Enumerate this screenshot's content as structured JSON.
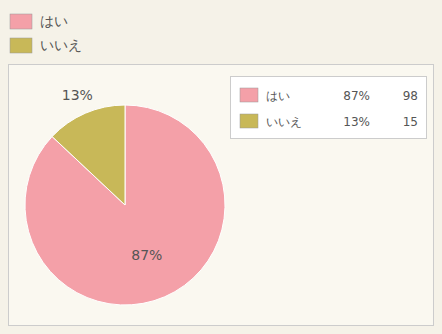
{
  "chart_data": {
    "type": "pie",
    "categories": [
      "はい",
      "いいえ"
    ],
    "values": [
      87,
      13
    ],
    "value_labels": [
      "87%",
      "13%"
    ],
    "counts": [
      98,
      15
    ],
    "colors": [
      "#F4A0A8",
      "#C8B858"
    ],
    "data_labels": true,
    "legend": "upper right"
  }
}
